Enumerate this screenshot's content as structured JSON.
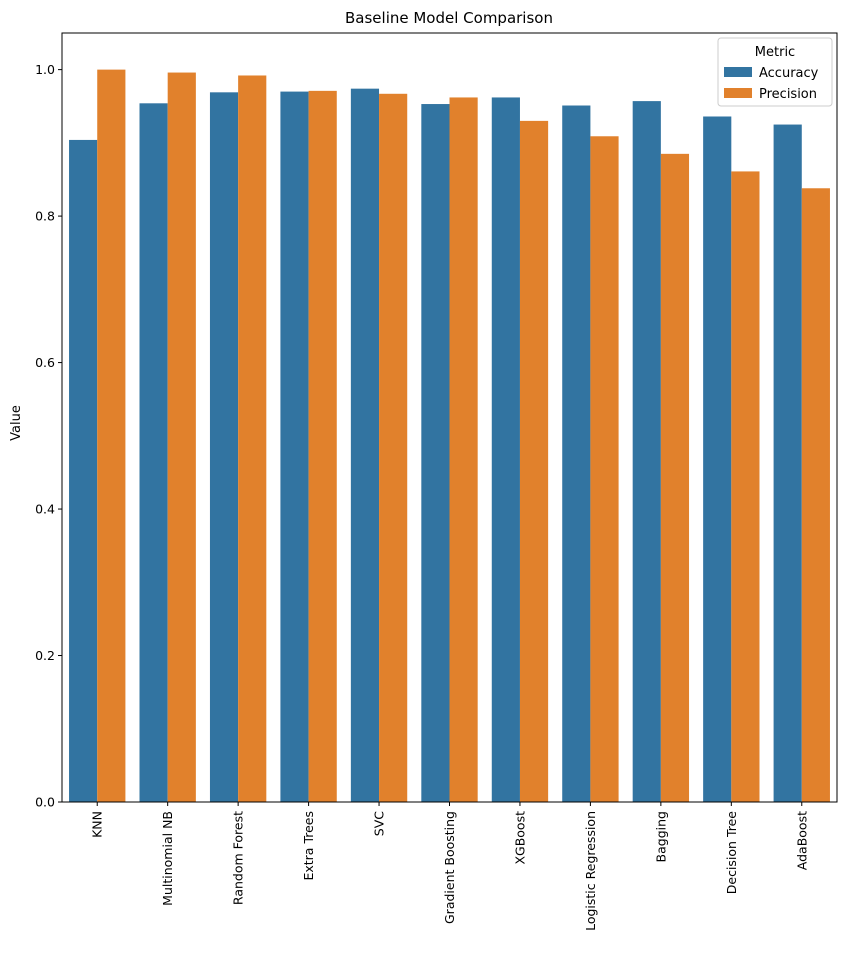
{
  "chart_data": {
    "type": "bar",
    "title": "Baseline Model Comparison",
    "xlabel": "",
    "ylabel": "Value",
    "ylim": [
      0,
      1.05
    ],
    "yticks": [
      0.0,
      0.2,
      0.4,
      0.6,
      0.8,
      1.0
    ],
    "ytick_labels": [
      "0.0",
      "0.2",
      "0.4",
      "0.6",
      "0.8",
      "1.0"
    ],
    "grid": false,
    "legend": {
      "title": "Metric",
      "placement": "top-right"
    },
    "categories": [
      "KNN",
      "Multinomial NB",
      "Random Forest",
      "Extra Trees",
      "SVC",
      "Gradient Boosting",
      "XGBoost",
      "Logistic Regression",
      "Bagging",
      "Decision Tree",
      "AdaBoost"
    ],
    "series": [
      {
        "name": "Accuracy",
        "color": "#3274a1",
        "values": [
          0.904,
          0.954,
          0.969,
          0.97,
          0.974,
          0.953,
          0.962,
          0.951,
          0.957,
          0.936,
          0.925
        ]
      },
      {
        "name": "Precision",
        "color": "#e1812c",
        "values": [
          1.0,
          0.996,
          0.992,
          0.971,
          0.967,
          0.962,
          0.93,
          0.909,
          0.885,
          0.861,
          0.838
        ]
      }
    ]
  }
}
